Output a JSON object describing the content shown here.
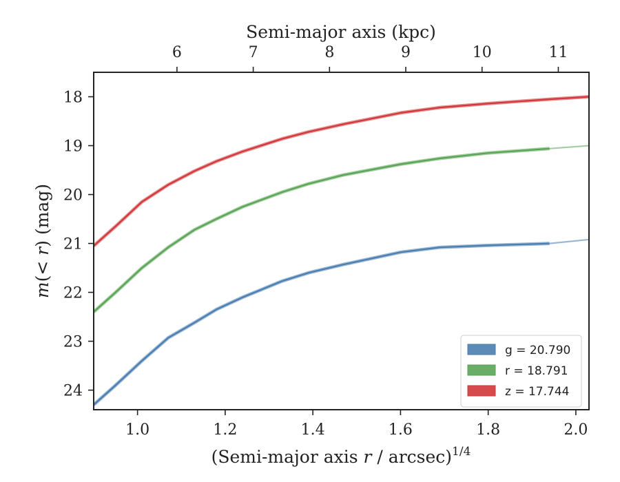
{
  "chart_data": {
    "type": "line",
    "xlabel": "(Semi-major axis ",
    "xlabel_var": "r",
    "xlabel_tail": " / arcsec)",
    "xlabel_exp": "1/4",
    "ylabel_pre": "m",
    "ylabel_mid": "(< ",
    "ylabel_var": "r",
    "ylabel_post": ") (mag)",
    "top_xlabel": "Semi-major axis (kpc)",
    "xlim": [
      0.9,
      2.03
    ],
    "ylim": [
      24.4,
      17.5
    ],
    "y_inverted": true,
    "x_ticks": [
      "1.0",
      "1.2",
      "1.4",
      "1.6",
      "1.8",
      "2.0"
    ],
    "x_tick_values": [
      1.0,
      1.2,
      1.4,
      1.6,
      1.8,
      2.0
    ],
    "y_ticks": [
      "18",
      "19",
      "20",
      "21",
      "22",
      "23",
      "24"
    ],
    "y_tick_values": [
      18,
      19,
      20,
      21,
      22,
      23,
      24
    ],
    "top_ticks": [
      "6",
      "7",
      "8",
      "9",
      "10",
      "11"
    ],
    "top_tick_x_positions": [
      1.09,
      1.264,
      1.438,
      1.612,
      1.786,
      1.96
    ],
    "legend_position": "lower right",
    "series": [
      {
        "name": "g = 20.790",
        "band": "g",
        "value": "20.790",
        "color": "#4a7eb0",
        "x": [
          0.9,
          0.95,
          1.01,
          1.07,
          1.13,
          1.18,
          1.24,
          1.33,
          1.39,
          1.47,
          1.6,
          1.69,
          1.8,
          1.94
        ],
        "y": [
          24.3,
          23.9,
          23.4,
          22.93,
          22.62,
          22.35,
          22.1,
          21.77,
          21.6,
          21.43,
          21.18,
          21.08,
          21.04,
          21.0
        ],
        "ext_x": [
          1.94,
          2.03
        ],
        "ext_y": [
          21.0,
          20.92
        ]
      },
      {
        "name": "r = 18.791",
        "band": "r",
        "value": "18.791",
        "color": "#5aa455",
        "x": [
          0.9,
          0.95,
          1.01,
          1.07,
          1.13,
          1.18,
          1.24,
          1.33,
          1.39,
          1.47,
          1.6,
          1.69,
          1.8,
          1.94
        ],
        "y": [
          22.4,
          22.0,
          21.5,
          21.08,
          20.72,
          20.5,
          20.25,
          19.95,
          19.78,
          19.6,
          19.38,
          19.26,
          19.15,
          19.06
        ],
        "ext_x": [
          1.94,
          2.03
        ],
        "ext_y": [
          19.06,
          19.0
        ]
      },
      {
        "name": "z = 17.744",
        "band": "z",
        "value": "17.744",
        "color": "#d0383b",
        "x": [
          0.9,
          0.95,
          1.01,
          1.07,
          1.13,
          1.18,
          1.24,
          1.33,
          1.39,
          1.47,
          1.6,
          1.69,
          1.8,
          1.94,
          2.03
        ],
        "y": [
          21.05,
          20.65,
          20.15,
          19.8,
          19.52,
          19.32,
          19.12,
          18.86,
          18.72,
          18.56,
          18.33,
          18.22,
          18.14,
          18.05,
          18.0
        ],
        "ext_x": [],
        "ext_y": []
      }
    ]
  }
}
